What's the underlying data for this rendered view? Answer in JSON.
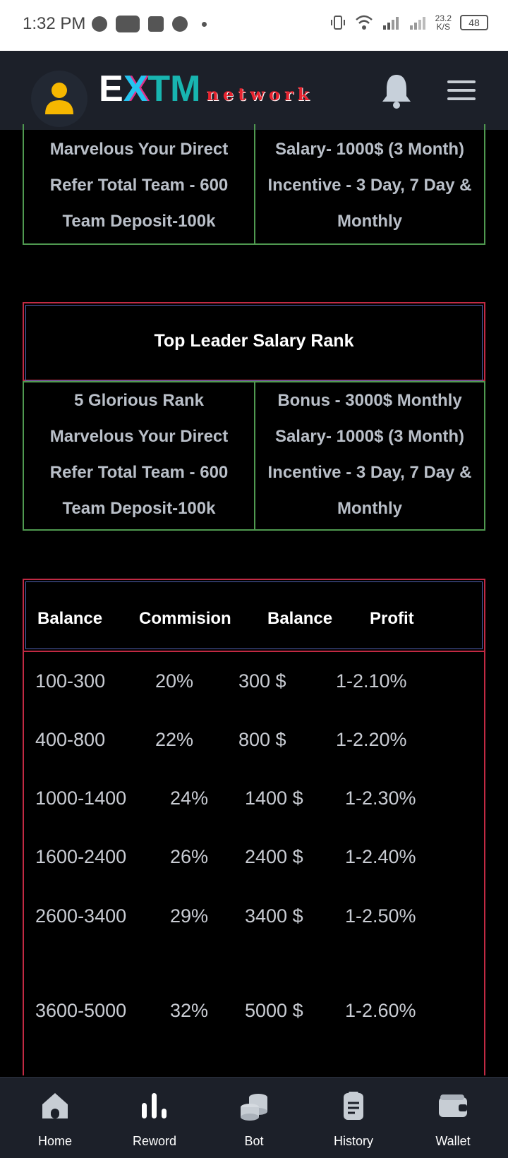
{
  "status_bar": {
    "time": "1:32 PM",
    "net_speed_top": "23.2",
    "net_speed_bottom": "K/S",
    "battery": "48"
  },
  "header": {
    "logo_main_1": "E",
    "logo_main_2": "X",
    "logo_main_3": "TM",
    "logo_sub": "network"
  },
  "top_card": {
    "left": [
      "Marvelous Your Direct",
      "Refer Total Team - 600",
      "Team Deposit-100k"
    ],
    "right": [
      "Salary- 1000$ (3 Month)",
      "Incentive - 3 Day, 7 Day &",
      "Monthly"
    ]
  },
  "rank_card": {
    "title": "Top Leader Salary Rank",
    "left": [
      "5 Glorious Rank",
      "Marvelous Your Direct",
      "Refer Total Team - 600",
      "Team Deposit-100k"
    ],
    "right": [
      "Bonus - 3000$ Monthly",
      "Salary- 1000$ (3 Month)",
      "Incentive - 3 Day, 7 Day &",
      "Monthly"
    ]
  },
  "table": {
    "headers": [
      "Balance",
      "Commision",
      "Balance",
      "Profit"
    ],
    "rows": [
      [
        "100-300",
        "20%",
        "300 $",
        "1-2.10%"
      ],
      [
        "400-800",
        "22%",
        "800 $",
        "1-2.20%"
      ],
      [
        "1000-1400",
        "24%",
        "1400 $",
        "1-2.30%"
      ],
      [
        "1600-2400",
        "26%",
        "2400 $",
        "1-2.40%"
      ],
      [
        "2600-3400",
        "29%",
        "3400 $",
        "1-2.50%"
      ],
      [
        "3600-5000",
        "32%",
        "5000 $",
        "1-2.60%"
      ]
    ]
  },
  "bottom_nav": [
    {
      "label": "Home",
      "icon": "home-icon"
    },
    {
      "label": "Reword",
      "icon": "bar-chart-icon"
    },
    {
      "label": "Bot",
      "icon": "coins-icon"
    },
    {
      "label": "History",
      "icon": "document-icon"
    },
    {
      "label": "Wallet",
      "icon": "wallet-icon"
    }
  ],
  "colors": {
    "accent_red": "#c12a43",
    "accent_green": "#4f9950",
    "accent_blue": "#5263b5",
    "header_bg": "#1c2029"
  }
}
